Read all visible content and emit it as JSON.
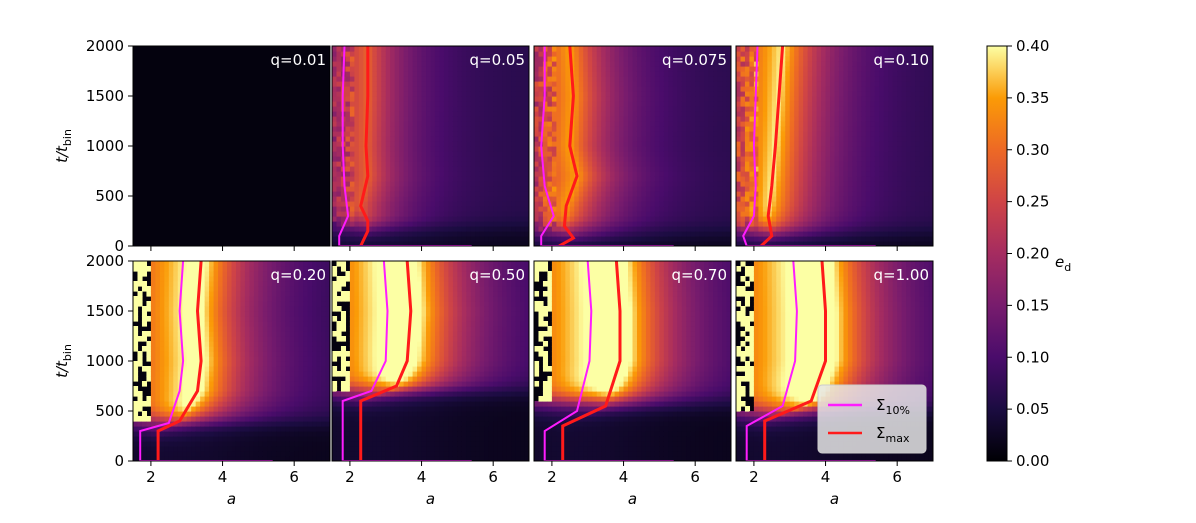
{
  "chart_data": {
    "type": "heatmap",
    "grid": {
      "rows": 2,
      "cols": 4,
      "shared_x": true,
      "shared_y": true
    },
    "x_axis": {
      "label": "a",
      "range": [
        1.5,
        7
      ],
      "ticks": [
        2,
        4,
        6
      ]
    },
    "y_axis": {
      "label_main": "t/t",
      "label_sub": "bin",
      "range": [
        0,
        2000
      ],
      "ticks": [
        0,
        500,
        1000,
        1500,
        2000
      ]
    },
    "colorbar": {
      "label_main": "e",
      "label_sub": "d",
      "range": [
        0.0,
        0.4
      ],
      "ticks": [
        "0.00",
        "0.05",
        "0.10",
        "0.15",
        "0.20",
        "0.25",
        "0.30",
        "0.35",
        "0.40"
      ],
      "colormap": "inferno"
    },
    "panels": [
      {
        "label": "q=0.01",
        "onset_t": null,
        "saturation": 0.08,
        "s10": [
          [
            0,
            5.4,
            5.4
          ],
          [
            5.4,
            5.4,
            5.4
          ]
        ],
        "smax": null
      },
      {
        "label": "q=0.05",
        "onset_t": 200,
        "saturation": 0.55,
        "s10": [
          [
            0,
            1.7,
            5.4
          ],
          [
            100,
            1.7
          ],
          [
            300,
            1.95
          ],
          [
            600,
            1.85
          ],
          [
            1000,
            1.8
          ],
          [
            1500,
            1.8
          ],
          [
            2000,
            1.85
          ]
        ],
        "smax": [
          [
            0,
            2.3
          ],
          [
            150,
            2.5
          ],
          [
            250,
            2.5
          ],
          [
            400,
            2.3
          ],
          [
            700,
            2.5
          ],
          [
            1000,
            2.45
          ],
          [
            1500,
            2.5
          ],
          [
            2000,
            2.5
          ]
        ]
      },
      {
        "label": "q=0.075",
        "onset_t": 150,
        "saturation": 0.7,
        "s10": [
          [
            0,
            1.7,
            5.4
          ],
          [
            100,
            1.7
          ],
          [
            300,
            2.05
          ],
          [
            600,
            1.8
          ],
          [
            1000,
            1.7
          ],
          [
            1500,
            1.8
          ],
          [
            2000,
            1.8
          ]
        ],
        "smax": [
          [
            0,
            2.2
          ],
          [
            80,
            2.6
          ],
          [
            200,
            2.35
          ],
          [
            400,
            2.4
          ],
          [
            700,
            2.7
          ],
          [
            1000,
            2.5
          ],
          [
            1500,
            2.6
          ],
          [
            2000,
            2.5
          ]
        ]
      },
      {
        "label": "q=0.10",
        "onset_t": 150,
        "saturation": 0.8,
        "s10": [
          [
            0,
            1.8,
            5.4
          ],
          [
            100,
            1.7
          ],
          [
            300,
            2.0
          ],
          [
            600,
            2.05
          ],
          [
            1000,
            2.0
          ],
          [
            1500,
            2.05
          ],
          [
            2000,
            2.1
          ]
        ],
        "smax": [
          [
            0,
            2.2
          ],
          [
            100,
            2.5
          ],
          [
            300,
            2.4
          ],
          [
            600,
            2.5
          ],
          [
            1000,
            2.6
          ],
          [
            1500,
            2.7
          ],
          [
            2000,
            2.8
          ]
        ]
      },
      {
        "label": "q=0.20",
        "onset_t": 400,
        "saturation": 0.9,
        "s10": [
          [
            0,
            1.7,
            5.4
          ],
          [
            300,
            1.7
          ],
          [
            380,
            2.5
          ],
          [
            700,
            2.8
          ],
          [
            1000,
            2.9
          ],
          [
            1500,
            2.8
          ],
          [
            2000,
            2.9
          ]
        ],
        "smax": [
          [
            0,
            2.2
          ],
          [
            300,
            2.2
          ],
          [
            400,
            2.8
          ],
          [
            700,
            3.3
          ],
          [
            1000,
            3.4
          ],
          [
            1500,
            3.3
          ],
          [
            2000,
            3.4
          ]
        ]
      },
      {
        "label": "q=0.50",
        "onset_t": 700,
        "saturation": 1.0,
        "s10": [
          [
            0,
            1.8,
            5.4
          ],
          [
            600,
            1.8
          ],
          [
            700,
            2.6
          ],
          [
            1000,
            3.0
          ],
          [
            1500,
            3.05
          ],
          [
            2000,
            2.95
          ]
        ],
        "smax": [
          [
            0,
            2.3
          ],
          [
            600,
            2.3
          ],
          [
            750,
            3.3
          ],
          [
            1000,
            3.6
          ],
          [
            1500,
            3.7
          ],
          [
            2000,
            3.6
          ]
        ]
      },
      {
        "label": "q=0.70",
        "onset_t": 600,
        "saturation": 1.0,
        "s10": [
          [
            0,
            1.8,
            5.4
          ],
          [
            300,
            1.8
          ],
          [
            500,
            2.7
          ],
          [
            1000,
            3.05
          ],
          [
            1500,
            3.1
          ],
          [
            2000,
            3.0
          ]
        ],
        "smax": [
          [
            0,
            2.3
          ],
          [
            350,
            2.3
          ],
          [
            550,
            3.5
          ],
          [
            1000,
            3.9
          ],
          [
            1500,
            3.9
          ],
          [
            2000,
            3.8
          ]
        ]
      },
      {
        "label": "q=1.00",
        "onset_t": 500,
        "saturation": 1.0,
        "s10": [
          [
            0,
            1.8,
            5.4
          ],
          [
            350,
            1.8
          ],
          [
            550,
            2.8
          ],
          [
            1000,
            3.15
          ],
          [
            1500,
            3.2
          ],
          [
            2000,
            3.1
          ]
        ],
        "smax": [
          [
            0,
            2.3
          ],
          [
            400,
            2.3
          ],
          [
            600,
            3.6
          ],
          [
            1000,
            4.0
          ],
          [
            1500,
            4.0
          ],
          [
            2000,
            3.9
          ]
        ]
      }
    ],
    "legend": {
      "position": "lower-right of q=1.00 panel",
      "items": [
        {
          "main": "Σ",
          "sub": "10%",
          "color": "#ff1cff"
        },
        {
          "main": "Σ",
          "sub": "max",
          "color": "#ff1a1a"
        }
      ]
    }
  }
}
